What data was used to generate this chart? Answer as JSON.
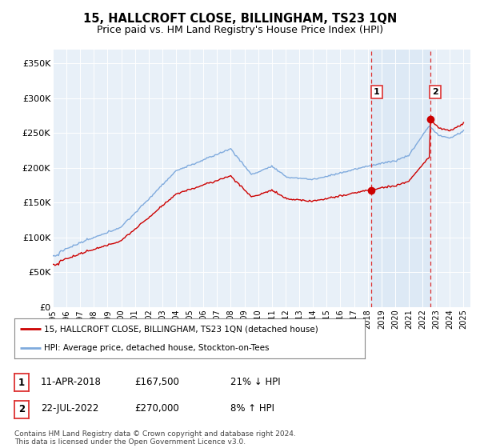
{
  "title": "15, HALLCROFT CLOSE, BILLINGHAM, TS23 1QN",
  "subtitle": "Price paid vs. HM Land Registry's House Price Index (HPI)",
  "ylabel_ticks": [
    "£0",
    "£50K",
    "£100K",
    "£150K",
    "£200K",
    "£250K",
    "£300K",
    "£350K"
  ],
  "ytick_values": [
    0,
    50000,
    100000,
    150000,
    200000,
    250000,
    300000,
    350000
  ],
  "ylim": [
    0,
    370000
  ],
  "hpi_color": "#7faadd",
  "price_color": "#cc0000",
  "vline_color": "#dd3333",
  "shade_color": "#dce8f5",
  "grid_color": "#cccccc",
  "bg_color": "#e8f0f8",
  "legend_label_red": "15, HALLCROFT CLOSE, BILLINGHAM, TS23 1QN (detached house)",
  "legend_label_blue": "HPI: Average price, detached house, Stockton-on-Tees",
  "sale1_date": "11-APR-2018",
  "sale1_price": "£167,500",
  "sale1_hpi": "21% ↓ HPI",
  "sale2_date": "22-JUL-2022",
  "sale2_price": "£270,000",
  "sale2_hpi": "8% ↑ HPI",
  "footer": "Contains HM Land Registry data © Crown copyright and database right 2024.\nThis data is licensed under the Open Government Licence v3.0.",
  "sale1_year": 2018.28,
  "sale2_year": 2022.55,
  "sale1_price_val": 167500,
  "sale2_price_val": 270000
}
